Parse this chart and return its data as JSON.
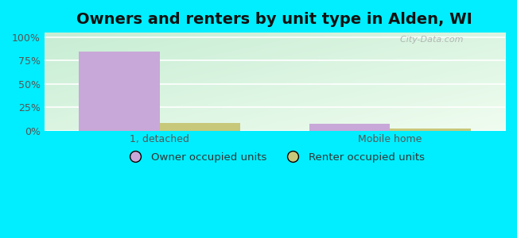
{
  "title": "Owners and renters by unit type in Alden, WI",
  "categories": [
    "1, detached",
    "Mobile home"
  ],
  "owner_values": [
    85,
    7
  ],
  "renter_values": [
    8,
    2
  ],
  "owner_color": "#c8a8d8",
  "renter_color": "#c8c87a",
  "yticks": [
    0,
    25,
    50,
    75,
    100
  ],
  "ytick_labels": [
    "0%",
    "25%",
    "50%",
    "75%",
    "100%"
  ],
  "ylim": [
    0,
    105
  ],
  "bar_width": 0.35,
  "watermark": "  City-Data.com",
  "legend_owner": "Owner occupied units",
  "legend_renter": "Renter occupied units",
  "title_fontsize": 14,
  "tick_fontsize": 9,
  "legend_fontsize": 9.5,
  "outer_bg": "#00eeff",
  "grid_color": "#dddddd"
}
